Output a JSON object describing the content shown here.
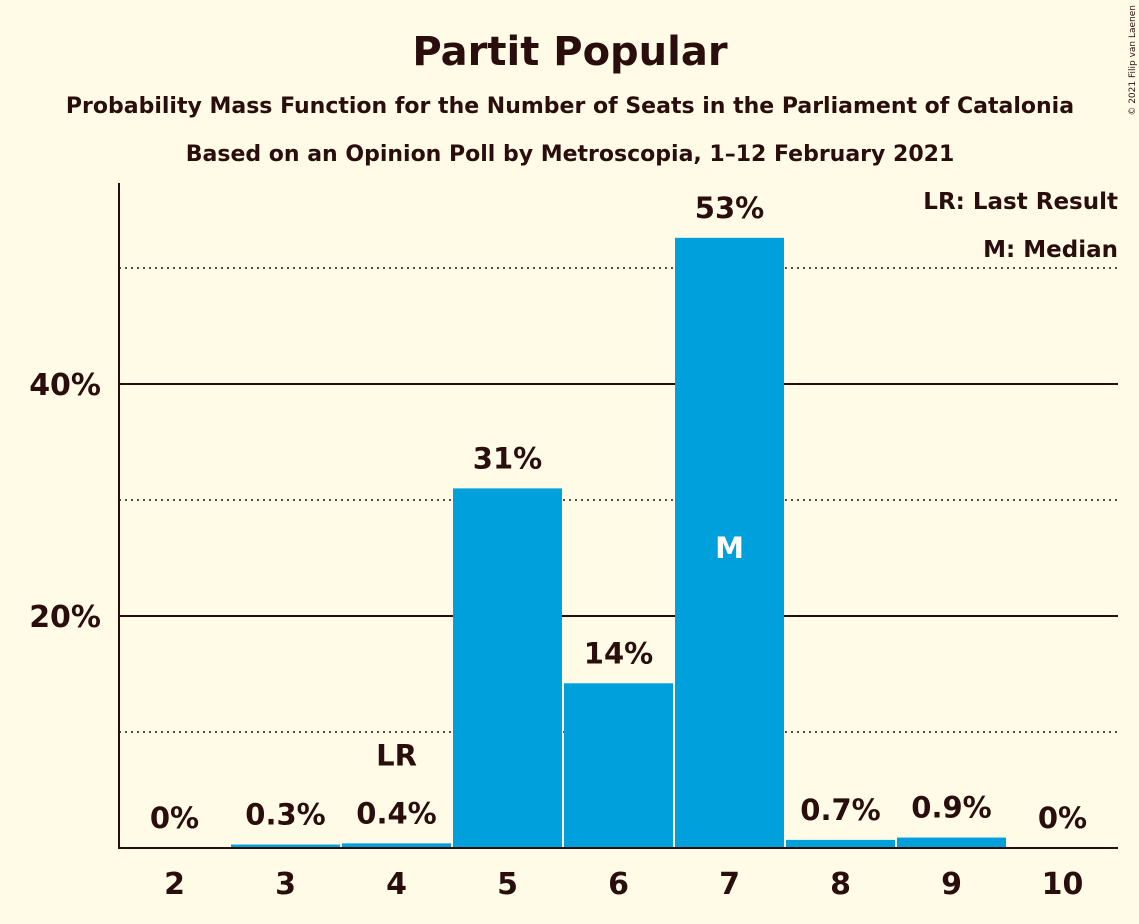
{
  "chart_data": {
    "type": "bar",
    "title": "Partit Popular",
    "subtitle1": "Probability Mass Function for the Number of Seats in the Parliament of Catalonia",
    "subtitle2": "Based on an Opinion Poll by Metroscopia, 1–12 February 2021",
    "categories": [
      "2",
      "3",
      "4",
      "5",
      "6",
      "7",
      "8",
      "9",
      "10"
    ],
    "values": [
      0,
      0.3,
      0.4,
      31,
      14,
      53,
      0.7,
      0.9,
      0
    ],
    "plotted_values": [
      0,
      0.3,
      0.4,
      31,
      14.2,
      52.6,
      0.7,
      0.9,
      0
    ],
    "data_labels": [
      "0%",
      "0.3%",
      "0.4%",
      "31%",
      "14%",
      "53%",
      "0.7%",
      "0.9%",
      "0%"
    ],
    "ylim": [
      0,
      57
    ],
    "yticks": [
      {
        "value": 20,
        "label": "20%"
      },
      {
        "value": 40,
        "label": "40%"
      }
    ],
    "minor_gridlines": [
      10,
      30,
      50
    ],
    "last_result_index": 2,
    "last_result_marker": "LR",
    "median_index": 5,
    "median_marker": "M",
    "legend": [
      "LR: Last Result",
      "M: Median"
    ],
    "legend_position": "top-right",
    "copyright": "© 2021 Filip van Laenen",
    "bar_color": "#00a0dd",
    "background_color": "#fffbe6",
    "text_color": "#2a0d0d",
    "grid": true
  }
}
